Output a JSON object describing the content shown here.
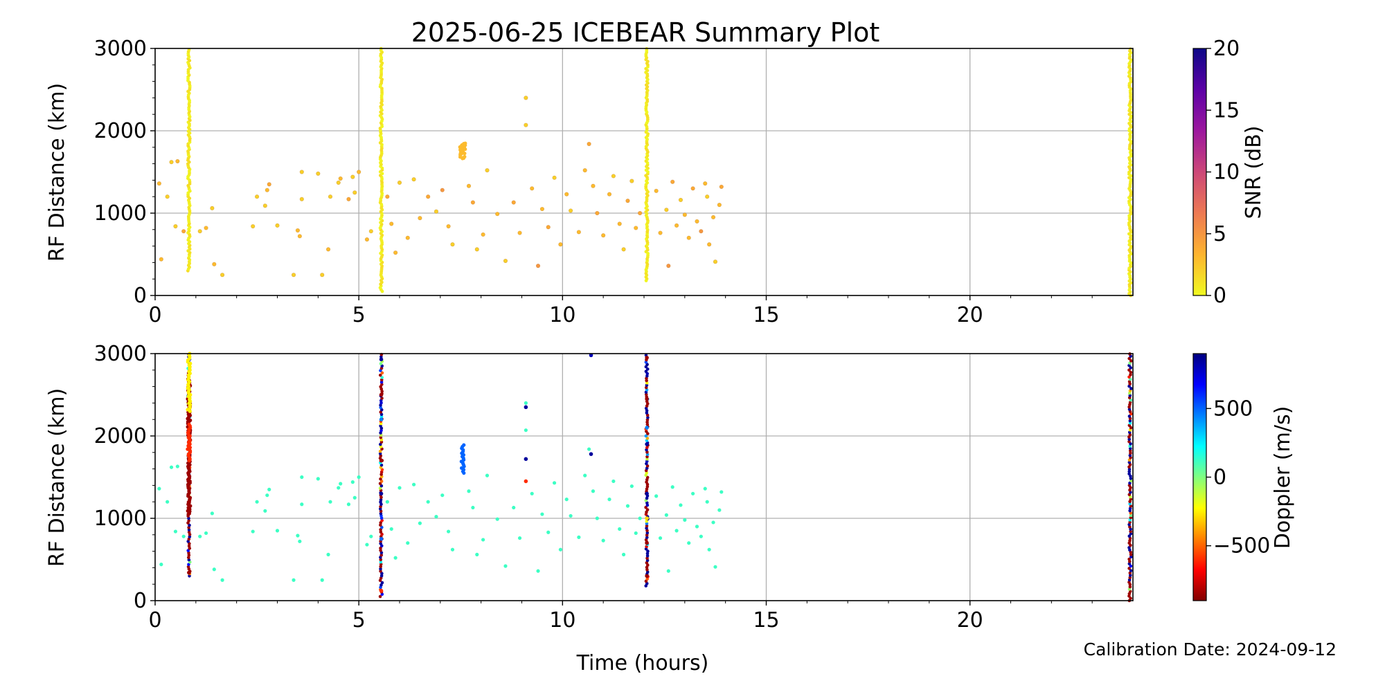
{
  "figure": {
    "title": "2025-06-25 ICEBEAR Summary Plot",
    "xlabel": "Time (hours)",
    "calibration_text": "Calibration Date: 2024-09-12"
  },
  "chart_data": [
    {
      "type": "scatter",
      "panel": "snr",
      "title": "2025-06-25 ICEBEAR Summary Plot",
      "xlabel": "Time (hours)",
      "ylabel": "RF Distance (km)",
      "xlim": [
        0,
        24
      ],
      "ylim": [
        0,
        3000
      ],
      "xticks": [
        0,
        5,
        10,
        15,
        20
      ],
      "yticks": [
        0,
        1000,
        2000,
        3000
      ],
      "grid": true,
      "colorbar": {
        "label": "SNR (dB)",
        "range": [
          0,
          20
        ],
        "ticks": [
          0,
          5,
          10,
          15,
          20
        ],
        "colormap": "plasma_r",
        "colors": [
          "#f0f921",
          "#fdb42f",
          "#ed7953",
          "#cc4778",
          "#9c179e",
          "#5c01a6",
          "#0d0887"
        ]
      },
      "vertical_bands": [
        {
          "x": 0.83,
          "y_range": [
            300,
            3000
          ],
          "value": 0
        },
        {
          "x": 5.55,
          "y_range": [
            50,
            3000
          ],
          "value": 0
        },
        {
          "x": 12.07,
          "y_range": [
            180,
            3000
          ],
          "value": 0
        },
        {
          "x": 23.93,
          "y_range": [
            0,
            3000
          ],
          "value": 0
        }
      ],
      "points": [
        {
          "x": 0.1,
          "y": 1360,
          "value": 3
        },
        {
          "x": 0.3,
          "y": 1200,
          "value": 2
        },
        {
          "x": 0.4,
          "y": 1620,
          "value": 2
        },
        {
          "x": 0.55,
          "y": 1630,
          "value": 3
        },
        {
          "x": 0.15,
          "y": 440,
          "value": 3
        },
        {
          "x": 0.5,
          "y": 840,
          "value": 2
        },
        {
          "x": 0.7,
          "y": 780,
          "value": 4
        },
        {
          "x": 1.1,
          "y": 780,
          "value": 2
        },
        {
          "x": 1.25,
          "y": 820,
          "value": 3
        },
        {
          "x": 1.4,
          "y": 1060,
          "value": 2
        },
        {
          "x": 1.45,
          "y": 380,
          "value": 3
        },
        {
          "x": 1.65,
          "y": 250,
          "value": 2
        },
        {
          "x": 2.4,
          "y": 840,
          "value": 2
        },
        {
          "x": 2.5,
          "y": 1200,
          "value": 2
        },
        {
          "x": 2.7,
          "y": 1090,
          "value": 2
        },
        {
          "x": 2.75,
          "y": 1280,
          "value": 3
        },
        {
          "x": 2.8,
          "y": 1350,
          "value": 4
        },
        {
          "x": 3.0,
          "y": 850,
          "value": 2
        },
        {
          "x": 3.4,
          "y": 250,
          "value": 2
        },
        {
          "x": 3.5,
          "y": 790,
          "value": 3
        },
        {
          "x": 3.55,
          "y": 720,
          "value": 3
        },
        {
          "x": 3.6,
          "y": 1170,
          "value": 2
        },
        {
          "x": 3.6,
          "y": 1500,
          "value": 2
        },
        {
          "x": 4.0,
          "y": 1480,
          "value": 2
        },
        {
          "x": 4.1,
          "y": 250,
          "value": 2
        },
        {
          "x": 4.25,
          "y": 560,
          "value": 3
        },
        {
          "x": 4.3,
          "y": 1200,
          "value": 2
        },
        {
          "x": 4.5,
          "y": 1370,
          "value": 2
        },
        {
          "x": 4.55,
          "y": 1420,
          "value": 3
        },
        {
          "x": 4.75,
          "y": 1170,
          "value": 4
        },
        {
          "x": 4.85,
          "y": 1440,
          "value": 2
        },
        {
          "x": 4.9,
          "y": 1250,
          "value": 2
        },
        {
          "x": 5.0,
          "y": 1500,
          "value": 3
        },
        {
          "x": 5.2,
          "y": 680,
          "value": 3
        },
        {
          "x": 5.3,
          "y": 780,
          "value": 2
        },
        {
          "x": 5.7,
          "y": 1200,
          "value": 4
        },
        {
          "x": 5.8,
          "y": 870,
          "value": 3
        },
        {
          "x": 5.9,
          "y": 520,
          "value": 3
        },
        {
          "x": 6.0,
          "y": 1370,
          "value": 2
        },
        {
          "x": 6.2,
          "y": 700,
          "value": 3
        },
        {
          "x": 6.35,
          "y": 1410,
          "value": 2
        },
        {
          "x": 6.5,
          "y": 940,
          "value": 3
        },
        {
          "x": 6.7,
          "y": 1200,
          "value": 4
        },
        {
          "x": 6.9,
          "y": 1020,
          "value": 2
        },
        {
          "x": 7.05,
          "y": 1280,
          "value": 5
        },
        {
          "x": 7.2,
          "y": 840,
          "value": 3
        },
        {
          "x": 7.3,
          "y": 620,
          "value": 2
        },
        {
          "x": 7.7,
          "y": 1330,
          "value": 3
        },
        {
          "x": 7.8,
          "y": 1130,
          "value": 4
        },
        {
          "x": 7.9,
          "y": 560,
          "value": 2
        },
        {
          "x": 8.05,
          "y": 740,
          "value": 3
        },
        {
          "x": 8.15,
          "y": 1520,
          "value": 2
        },
        {
          "x": 8.4,
          "y": 990,
          "value": 3
        },
        {
          "x": 8.6,
          "y": 420,
          "value": 2
        },
        {
          "x": 8.8,
          "y": 1130,
          "value": 4
        },
        {
          "x": 8.95,
          "y": 760,
          "value": 3
        },
        {
          "x": 9.1,
          "y": 2400,
          "value": 2
        },
        {
          "x": 9.1,
          "y": 2070,
          "value": 2
        },
        {
          "x": 9.25,
          "y": 1300,
          "value": 3
        },
        {
          "x": 9.4,
          "y": 360,
          "value": 5
        },
        {
          "x": 9.5,
          "y": 1050,
          "value": 3
        },
        {
          "x": 9.65,
          "y": 830,
          "value": 4
        },
        {
          "x": 9.8,
          "y": 1430,
          "value": 2
        },
        {
          "x": 9.95,
          "y": 620,
          "value": 3
        },
        {
          "x": 10.1,
          "y": 1230,
          "value": 3
        },
        {
          "x": 10.2,
          "y": 1030,
          "value": 2
        },
        {
          "x": 10.4,
          "y": 770,
          "value": 3
        },
        {
          "x": 10.55,
          "y": 1520,
          "value": 3
        },
        {
          "x": 10.65,
          "y": 1840,
          "value": 4
        },
        {
          "x": 10.75,
          "y": 1330,
          "value": 3
        },
        {
          "x": 10.85,
          "y": 1000,
          "value": 4
        },
        {
          "x": 11.0,
          "y": 730,
          "value": 3
        },
        {
          "x": 11.15,
          "y": 1230,
          "value": 3
        },
        {
          "x": 11.25,
          "y": 1450,
          "value": 2
        },
        {
          "x": 11.4,
          "y": 870,
          "value": 3
        },
        {
          "x": 11.5,
          "y": 560,
          "value": 2
        },
        {
          "x": 11.6,
          "y": 1150,
          "value": 4
        },
        {
          "x": 11.7,
          "y": 1390,
          "value": 2
        },
        {
          "x": 11.8,
          "y": 820,
          "value": 3
        },
        {
          "x": 11.9,
          "y": 1000,
          "value": 4
        },
        {
          "x": 12.3,
          "y": 1270,
          "value": 3
        },
        {
          "x": 12.4,
          "y": 760,
          "value": 3
        },
        {
          "x": 12.55,
          "y": 1040,
          "value": 2
        },
        {
          "x": 12.6,
          "y": 360,
          "value": 5
        },
        {
          "x": 12.7,
          "y": 1380,
          "value": 4
        },
        {
          "x": 12.8,
          "y": 850,
          "value": 3
        },
        {
          "x": 12.9,
          "y": 1160,
          "value": 2
        },
        {
          "x": 13.0,
          "y": 980,
          "value": 3
        },
        {
          "x": 13.1,
          "y": 700,
          "value": 3
        },
        {
          "x": 13.2,
          "y": 1300,
          "value": 4
        },
        {
          "x": 13.3,
          "y": 900,
          "value": 3
        },
        {
          "x": 13.4,
          "y": 780,
          "value": 5
        },
        {
          "x": 13.5,
          "y": 1360,
          "value": 3
        },
        {
          "x": 13.55,
          "y": 1200,
          "value": 2
        },
        {
          "x": 13.6,
          "y": 620,
          "value": 3
        },
        {
          "x": 13.7,
          "y": 950,
          "value": 3
        },
        {
          "x": 13.75,
          "y": 410,
          "value": 2
        },
        {
          "x": 13.85,
          "y": 1100,
          "value": 3
        },
        {
          "x": 13.9,
          "y": 1320,
          "value": 4
        }
      ],
      "clusters": [
        {
          "x": 7.55,
          "y": 1800,
          "value": 3
        },
        {
          "x": 7.55,
          "y": 1720,
          "value": 3
        }
      ]
    },
    {
      "type": "scatter",
      "panel": "doppler",
      "xlabel": "Time (hours)",
      "ylabel": "RF Distance (km)",
      "xlim": [
        0,
        24
      ],
      "ylim": [
        0,
        3000
      ],
      "xticks": [
        0,
        5,
        10,
        15,
        20
      ],
      "yticks": [
        0,
        1000,
        2000,
        3000
      ],
      "grid": true,
      "colorbar": {
        "label": "Doppler (m/s)",
        "range": [
          -900,
          900
        ],
        "ticks": [
          -500,
          0,
          500
        ],
        "tick_labels": [
          "−500",
          "0",
          "500"
        ],
        "colormap": "jet_r",
        "colors": [
          "#800000",
          "#ff0000",
          "#ff8000",
          "#ffff00",
          "#80ff80",
          "#00ffff",
          "#0080ff",
          "#0000ff",
          "#000080"
        ]
      },
      "background_doppler": 120,
      "highlights": [
        {
          "x": 0.83,
          "y_range": [
            1050,
            2700
          ],
          "value": -850
        },
        {
          "x": 0.83,
          "y_range": [
            2300,
            3000
          ],
          "value": -250
        },
        {
          "x": 0.83,
          "y_range": [
            1700,
            2150
          ],
          "value": -600
        },
        {
          "x": 0.83,
          "y": 340,
          "value": -850
        },
        {
          "x": 7.55,
          "y_range": [
            1550,
            1900
          ],
          "value": 500
        },
        {
          "x": 5.55,
          "y": 2930,
          "value": 850
        },
        {
          "x": 5.55,
          "y": 2500,
          "value": -850
        },
        {
          "x": 5.55,
          "y": 2200,
          "value": 450
        },
        {
          "x": 5.55,
          "y": 1700,
          "value": -850
        },
        {
          "x": 5.55,
          "y": 1300,
          "value": 850
        },
        {
          "x": 5.55,
          "y": 750,
          "value": 500
        },
        {
          "x": 5.55,
          "y": 120,
          "value": -600
        },
        {
          "x": 9.1,
          "y": 2350,
          "value": 850
        },
        {
          "x": 9.1,
          "y": 1720,
          "value": 850
        },
        {
          "x": 9.1,
          "y": 1450,
          "value": -600
        },
        {
          "x": 10.7,
          "y": 2980,
          "value": 800
        },
        {
          "x": 10.7,
          "y": 1780,
          "value": 850
        },
        {
          "x": 12.07,
          "y": 2950,
          "value": -850
        },
        {
          "x": 12.07,
          "y": 2450,
          "value": -850
        },
        {
          "x": 12.07,
          "y": 2100,
          "value": 450
        },
        {
          "x": 12.07,
          "y": 1900,
          "value": 850
        },
        {
          "x": 12.07,
          "y": 1300,
          "value": 850
        },
        {
          "x": 12.07,
          "y": 1000,
          "value": -300
        },
        {
          "x": 12.07,
          "y": 700,
          "value": -850
        },
        {
          "x": 12.07,
          "y": 300,
          "value": -850
        }
      ]
    }
  ]
}
